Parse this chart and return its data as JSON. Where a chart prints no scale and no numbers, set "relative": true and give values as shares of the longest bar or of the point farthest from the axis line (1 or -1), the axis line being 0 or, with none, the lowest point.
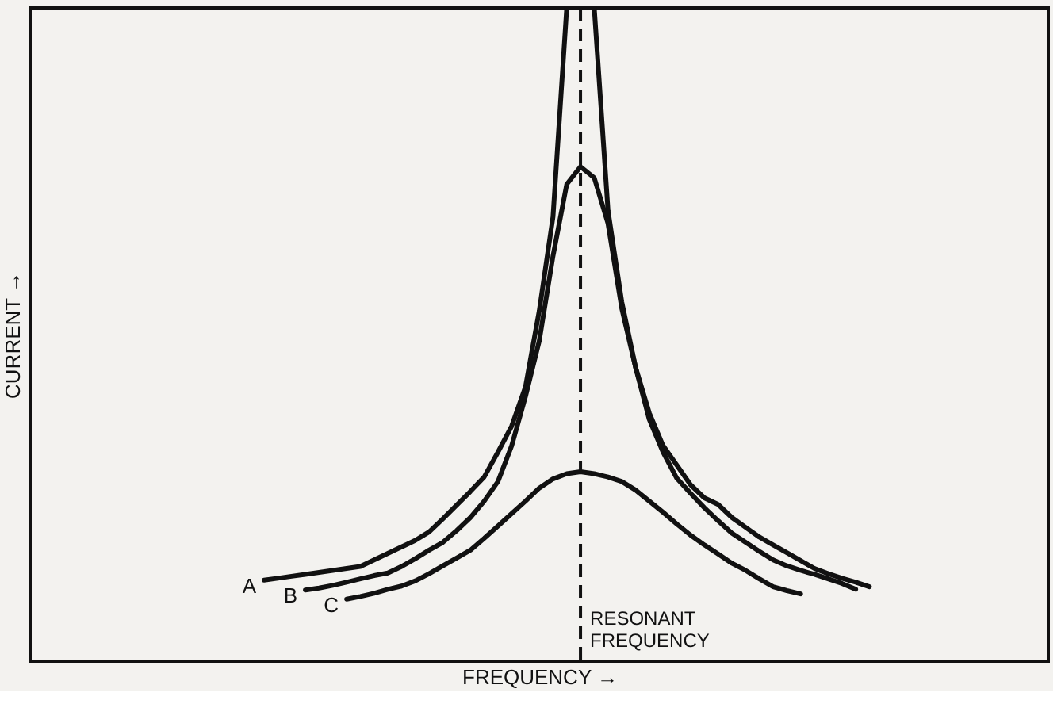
{
  "chart_data": {
    "type": "line",
    "relative": true,
    "xlabel": "FREQUENCY →",
    "ylabel": "CURRENT →",
    "marker": "none",
    "line_style": "solid",
    "categories": [
      null,
      null,
      null,
      null,
      null,
      null,
      null,
      null,
      null,
      null,
      null,
      null,
      null,
      null,
      null,
      null,
      null,
      null,
      null,
      null,
      null,
      null,
      null,
      null,
      null,
      null,
      null,
      null,
      null,
      null,
      null,
      null,
      null,
      null,
      null,
      null,
      null,
      null,
      null,
      null,
      null,
      null,
      null,
      null,
      null,
      null,
      null,
      null,
      null,
      null,
      null,
      null,
      null,
      null,
      null,
      null,
      null,
      null,
      null,
      null,
      null,
      null,
      null,
      null,
      null,
      null,
      null,
      null,
      null,
      null,
      null,
      null,
      null,
      null,
      null
    ],
    "series": [
      {
        "name": "A",
        "color": "#111111",
        "values": [
          null,
          null,
          null,
          null,
          null,
          null,
          null,
          null,
          null,
          null,
          null,
          null,
          null,
          null,
          null,
          null,
          null,
          0.124,
          0.127,
          0.13,
          0.133,
          0.136,
          0.139,
          0.142,
          0.145,
          0.155,
          0.165,
          0.175,
          0.185,
          0.198,
          0.218,
          0.239,
          0.26,
          0.282,
          0.32,
          0.36,
          0.42,
          0.536,
          0.68,
          1.0,
          null,
          1.0,
          0.69,
          0.55,
          0.45,
          0.38,
          0.33,
          0.3,
          0.27,
          0.25,
          0.24,
          0.22,
          0.205,
          0.19,
          0.178,
          0.166,
          0.154,
          0.142,
          0.134,
          0.127,
          0.121,
          0.114,
          null,
          null,
          null,
          null,
          null,
          null,
          null,
          null,
          null,
          null,
          null,
          null,
          null
        ]
      },
      {
        "name": "B",
        "color": "#111111",
        "values": [
          null,
          null,
          null,
          null,
          null,
          null,
          null,
          null,
          null,
          null,
          null,
          null,
          null,
          null,
          null,
          null,
          null,
          null,
          null,
          null,
          0.109,
          0.112,
          0.116,
          0.121,
          0.126,
          0.131,
          0.135,
          0.145,
          0.157,
          0.17,
          0.182,
          0.2,
          0.22,
          0.245,
          0.275,
          0.33,
          0.405,
          0.49,
          0.62,
          0.73,
          0.757,
          0.74,
          0.67,
          0.54,
          0.45,
          0.37,
          0.32,
          0.28,
          0.257,
          0.235,
          0.215,
          0.196,
          0.182,
          0.168,
          0.155,
          0.146,
          0.139,
          0.133,
          0.126,
          0.119,
          0.11,
          null,
          null,
          null,
          null,
          null,
          null,
          null,
          null,
          null,
          null,
          null,
          null,
          null,
          null
        ]
      },
      {
        "name": "C",
        "color": "#111111",
        "values": [
          null,
          null,
          null,
          null,
          null,
          null,
          null,
          null,
          null,
          null,
          null,
          null,
          null,
          null,
          null,
          null,
          null,
          null,
          null,
          null,
          null,
          null,
          null,
          0.095,
          0.099,
          0.104,
          0.11,
          0.115,
          0.123,
          0.134,
          0.146,
          0.158,
          0.17,
          0.188,
          0.207,
          0.226,
          0.245,
          0.265,
          0.279,
          0.287,
          0.29,
          0.287,
          0.282,
          0.275,
          0.262,
          0.245,
          0.228,
          0.21,
          0.193,
          0.178,
          0.164,
          0.15,
          0.139,
          0.126,
          0.114,
          0.108,
          0.103,
          null,
          null,
          null,
          null,
          null,
          null,
          null,
          null,
          null,
          null,
          null,
          null,
          null,
          null,
          null,
          null,
          null,
          null
        ]
      }
    ],
    "annotations": [
      "RESONANT FREQUENCY"
    ]
  }
}
